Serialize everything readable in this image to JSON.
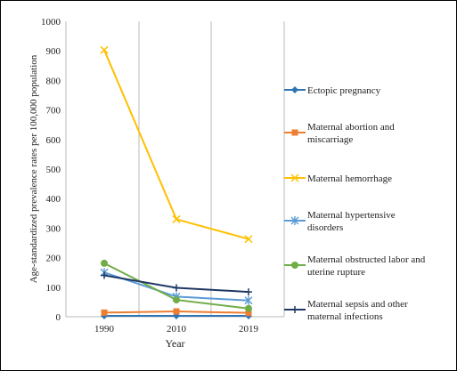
{
  "chart_data": {
    "type": "line",
    "x": [
      "1990",
      "2010",
      "2019"
    ],
    "xlabel": "Year",
    "ylabel": "Age-standardized prevalence rates per 100,000 population",
    "ylim": [
      0,
      1000
    ],
    "yticks": [
      "0",
      "100",
      "200",
      "300",
      "400",
      "500",
      "600",
      "700",
      "800",
      "900",
      "1000"
    ],
    "grid": "vertical",
    "legend_position": "right",
    "series": [
      {
        "key": "ectopic",
        "name_lines": [
          "Ectopic pregnancy"
        ],
        "color": "#2E75B6",
        "marker": "diamond",
        "values": [
          3,
          3,
          3
        ]
      },
      {
        "key": "abortion",
        "name_lines": [
          "Maternal abortion and",
          "miscarriage"
        ],
        "color": "#ED7D31",
        "marker": "square",
        "values": [
          14,
          18,
          13
        ]
      },
      {
        "key": "hemorrhage",
        "name_lines": [
          "Maternal hemorrhage"
        ],
        "color": "#FFC000",
        "marker": "x",
        "values": [
          903,
          330,
          263
        ]
      },
      {
        "key": "hypertensive",
        "name_lines": [
          "Maternal hypertensive",
          "disorders"
        ],
        "color": "#5B9BD5",
        "marker": "star",
        "values": [
          150,
          68,
          55
        ]
      },
      {
        "key": "obstructed",
        "name_lines": [
          "Maternal obstructed labor and",
          "uterine rupture"
        ],
        "color": "#70AD47",
        "marker": "circle",
        "values": [
          181,
          57,
          28
        ]
      },
      {
        "key": "sepsis",
        "name_lines": [
          "Maternal sepsis and other",
          "maternal infections"
        ],
        "color": "#1F3864",
        "marker": "plus",
        "values": [
          140,
          98,
          84
        ]
      }
    ]
  }
}
